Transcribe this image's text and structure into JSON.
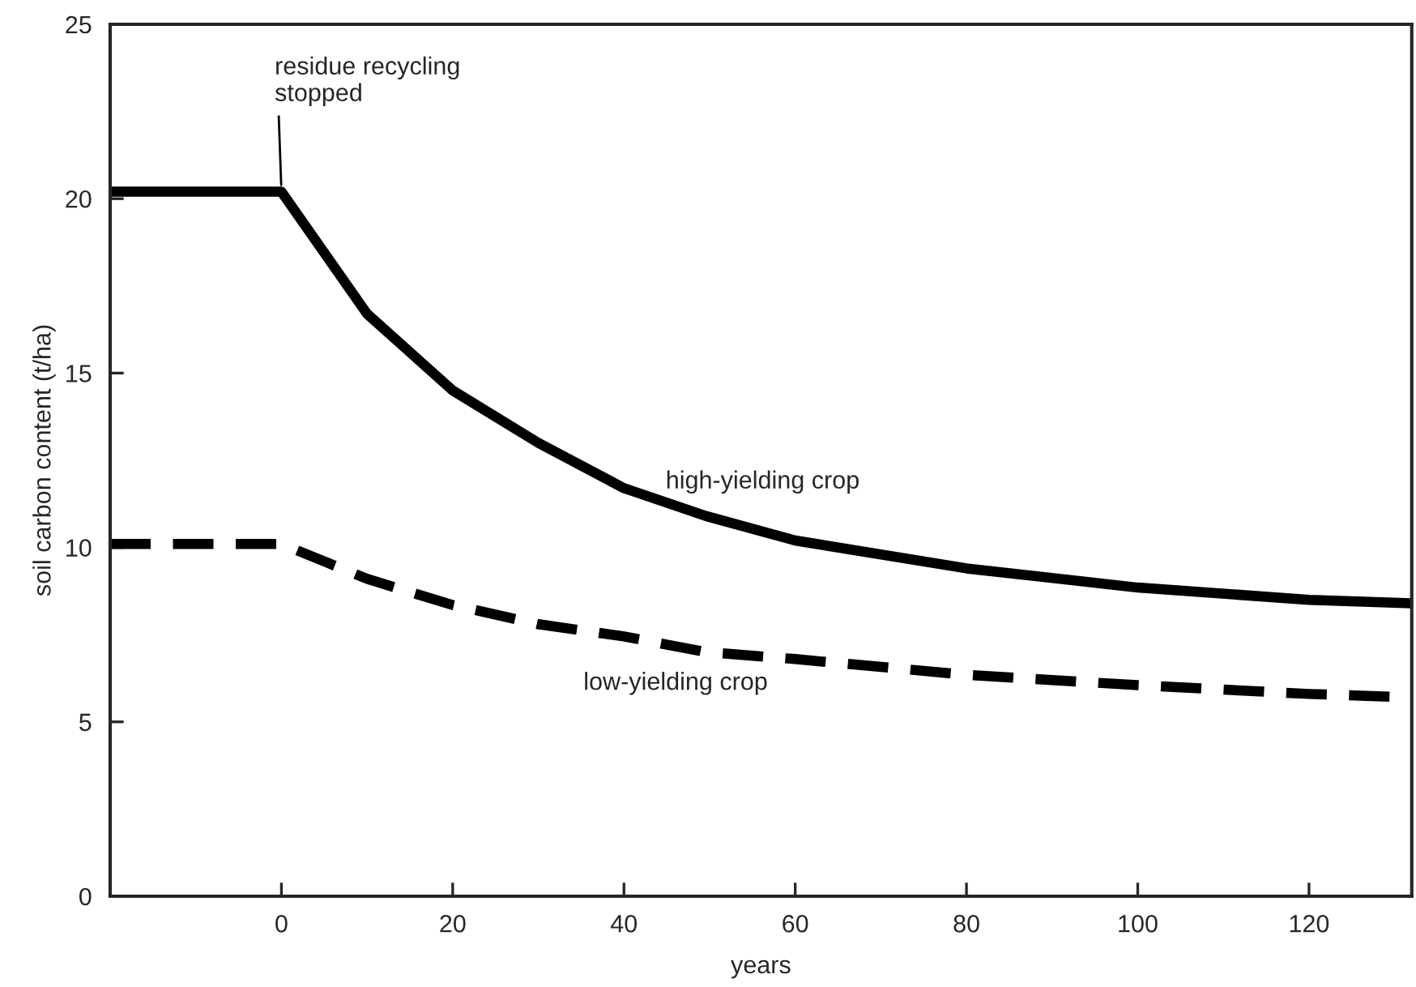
{
  "chart_data": {
    "type": "line",
    "xlabel": "years",
    "ylabel": "soil carbon content (t/ha)",
    "xlim": [
      -20,
      132
    ],
    "ylim": [
      0,
      25
    ],
    "xticks": [
      0,
      20,
      40,
      60,
      80,
      100,
      120
    ],
    "yticks": [
      0,
      5,
      10,
      15,
      20,
      25
    ],
    "grid": false,
    "legend": false,
    "marker": "none",
    "series": [
      {
        "name": "high-yielding crop",
        "color": "#000000",
        "line_style": "solid",
        "x": [
          -20,
          0,
          10,
          20,
          30,
          40,
          49.6,
          60,
          80,
          100,
          120,
          132
        ],
        "values": [
          20.2,
          20.2,
          16.7,
          14.5,
          13.0,
          11.7,
          10.9,
          10.2,
          9.4,
          8.85,
          8.5,
          8.4
        ]
      },
      {
        "name": "low-yielding crop",
        "color": "#000000",
        "line_style": "dashed",
        "x": [
          -20,
          0,
          5,
          10,
          20,
          30,
          40,
          49.6,
          60,
          80,
          100,
          120,
          132
        ],
        "values": [
          10.1,
          10.1,
          9.6,
          9.1,
          8.35,
          7.8,
          7.45,
          7.0,
          6.8,
          6.35,
          6.05,
          5.8,
          5.7
        ]
      }
    ],
    "annotations": [
      {
        "text": "residue recycling\nstopped",
        "x": 0,
        "y": 20.2
      }
    ]
  }
}
